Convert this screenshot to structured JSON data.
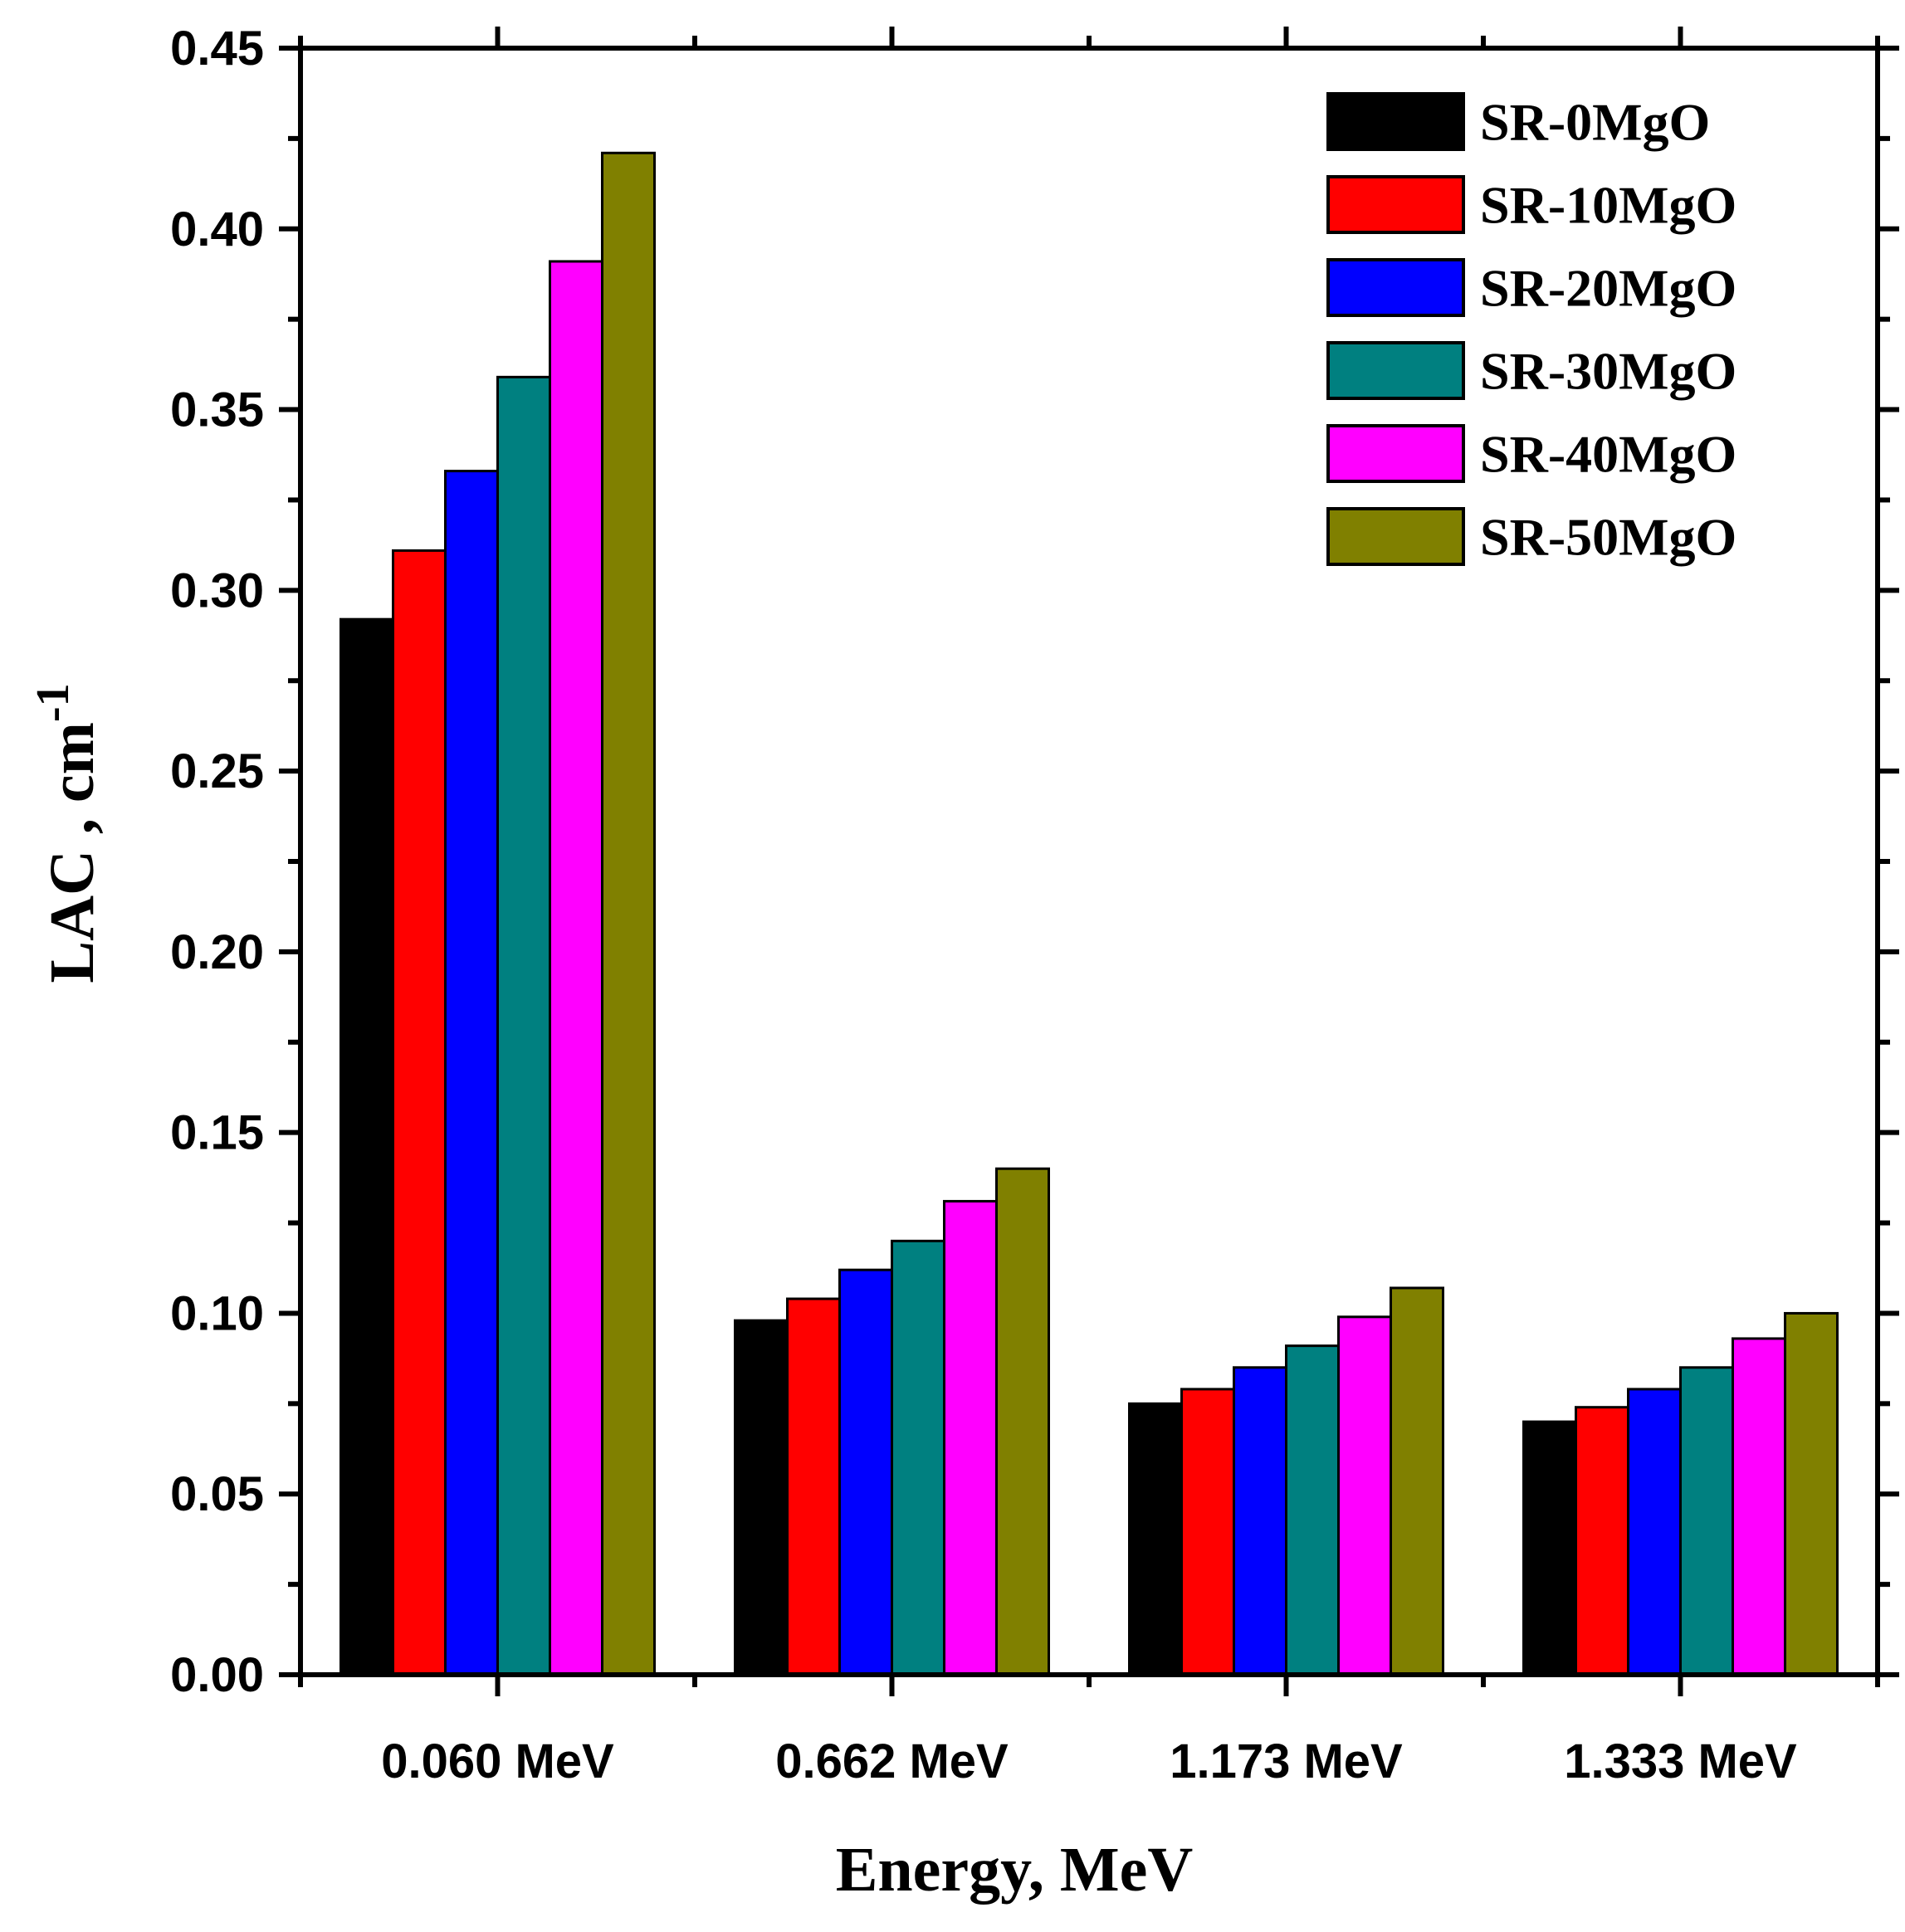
{
  "chart_data": {
    "type": "bar",
    "title": "",
    "xlabel": "Energy, MeV",
    "ylabel": "LAC , cm",
    "ylabel_superscript": "-1",
    "categories": [
      "0.060 MeV",
      "0.662 MeV",
      "1.173 MeV",
      "1.333 MeV"
    ],
    "ylim": [
      0,
      0.45
    ],
    "yticks": [
      "0.00",
      "0.05",
      "0.10",
      "0.15",
      "0.20",
      "0.25",
      "0.30",
      "0.35",
      "0.40",
      "0.45"
    ],
    "legend_position": "top-right",
    "grid": false,
    "series": [
      {
        "name": "SR-0MgO",
        "color": "#000000",
        "values": [
          0.292,
          0.098,
          0.075,
          0.07
        ]
      },
      {
        "name": "SR-10MgO",
        "color": "#ff0000",
        "values": [
          0.311,
          0.104,
          0.079,
          0.074
        ]
      },
      {
        "name": "SR-20MgO",
        "color": "#0000ff",
        "values": [
          0.333,
          0.112,
          0.085,
          0.079
        ]
      },
      {
        "name": "SR-30MgO",
        "color": "#008080",
        "values": [
          0.359,
          0.12,
          0.091,
          0.085
        ]
      },
      {
        "name": "SR-40MgO",
        "color": "#ff00ff",
        "values": [
          0.391,
          0.131,
          0.099,
          0.093
        ]
      },
      {
        "name": "SR-50MgO",
        "color": "#808000",
        "values": [
          0.421,
          0.14,
          0.107,
          0.1
        ]
      }
    ]
  }
}
